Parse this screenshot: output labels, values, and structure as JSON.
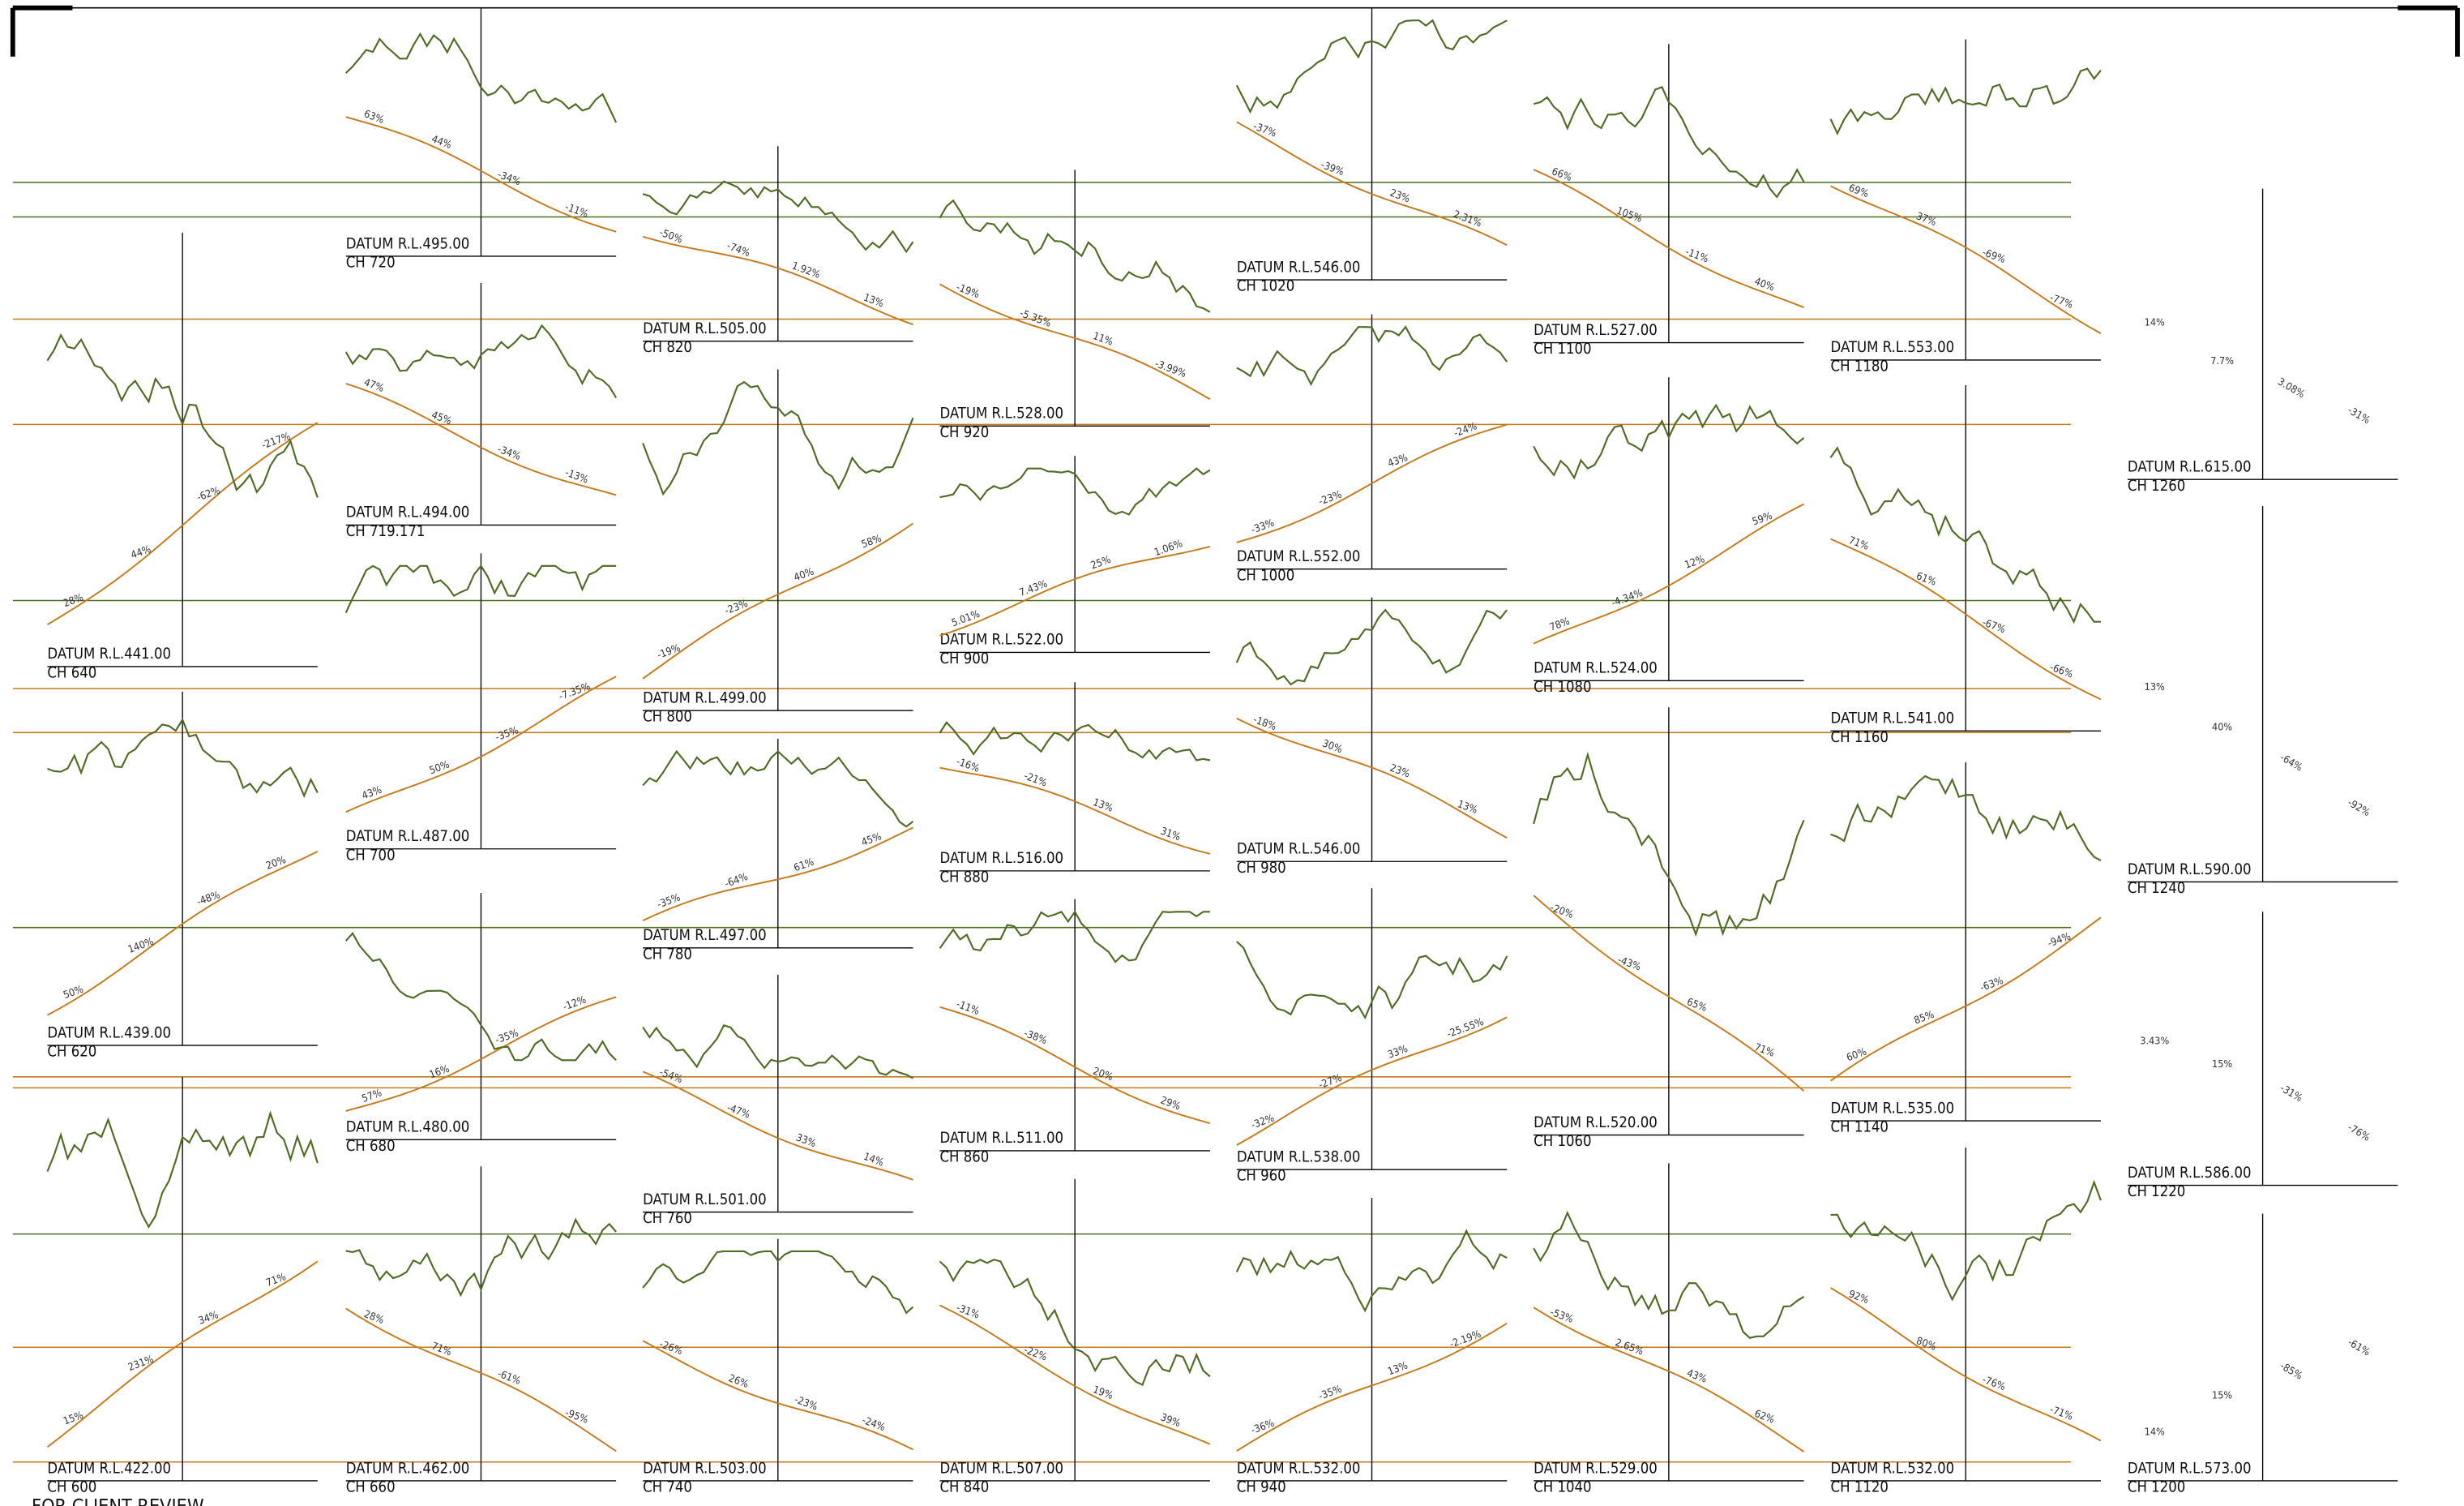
{
  "sections": [
    {
      "datum": "DATUM R.L.441.00",
      "chainage": "CH 640",
      "grades": [
        "28%",
        "44%",
        "-62%",
        "-217%"
      ]
    },
    {
      "datum": "DATUM R.L.439.00",
      "chainage": "CH 620",
      "grades": [
        "50%",
        "140%",
        "-48%",
        "20%"
      ]
    },
    {
      "datum": "DATUM R.L.422.00",
      "chainage": "CH 600",
      "grades": [
        "15%",
        "231%",
        "34%",
        "71%"
      ]
    },
    {
      "datum": "DATUM R.L.495.00",
      "chainage": "CH 720",
      "grades": [
        "63%",
        "44%",
        "-34%",
        "-11%"
      ]
    },
    {
      "datum": "DATUM R.L.494.00",
      "chainage": "CH 719.171",
      "grades": [
        "47%",
        "45%",
        "-34%",
        "-13%"
      ]
    },
    {
      "datum": "DATUM R.L.487.00",
      "chainage": "CH 700",
      "grades": [
        "43%",
        "50%",
        "-35%",
        "-7.35%"
      ]
    },
    {
      "datum": "DATUM R.L.480.00",
      "chainage": "CH 680",
      "grades": [
        "57%",
        "16%",
        "-35%",
        "-12%"
      ]
    },
    {
      "datum": "DATUM R.L.462.00",
      "chainage": "CH 660",
      "grades": [
        "28%",
        "71%",
        "-61%",
        "-95%"
      ]
    },
    {
      "datum": "DATUM R.L.505.00",
      "chainage": "CH 820",
      "grades": [
        "-50%",
        "-74%",
        "1.92%",
        "13%"
      ]
    },
    {
      "datum": "DATUM R.L.499.00",
      "chainage": "CH 800",
      "grades": [
        "-19%",
        "-23%",
        "40%",
        "58%"
      ]
    },
    {
      "datum": "DATUM R.L.497.00",
      "chainage": "CH 780",
      "grades": [
        "-35%",
        "-64%",
        "61%",
        "45%"
      ]
    },
    {
      "datum": "DATUM R.L.501.00",
      "chainage": "CH 760",
      "grades": [
        "-54%",
        "-47%",
        "33%",
        "14%"
      ]
    },
    {
      "datum": "DATUM R.L.503.00",
      "chainage": "CH 740",
      "grades": [
        "-26%",
        "26%",
        "-23%",
        "-24%"
      ]
    },
    {
      "datum": "DATUM R.L.528.00",
      "chainage": "CH 920",
      "grades": [
        "-19%",
        "-5.35%",
        "11%",
        "-3.99%"
      ]
    },
    {
      "datum": "DATUM R.L.522.00",
      "chainage": "CH 900",
      "grades": [
        "5.01%",
        "7.43%",
        "25%",
        "1.06%"
      ]
    },
    {
      "datum": "DATUM R.L.516.00",
      "chainage": "CH 880",
      "grades": [
        "-16%",
        "-21%",
        "13%",
        "31%"
      ]
    },
    {
      "datum": "DATUM R.L.511.00",
      "chainage": "CH 860",
      "grades": [
        "-11%",
        "-38%",
        "20%",
        "29%"
      ]
    },
    {
      "datum": "DATUM R.L.507.00",
      "chainage": "CH 840",
      "grades": [
        "-31%",
        "-22%",
        "19%",
        "39%"
      ]
    },
    {
      "datum": "DATUM R.L.546.00",
      "chainage": "CH 1020",
      "grades": [
        "-37%",
        "-39%",
        "23%",
        "2.31%"
      ]
    },
    {
      "datum": "DATUM R.L.552.00",
      "chainage": "CH 1000",
      "grades": [
        "-33%",
        "-23%",
        "43%",
        "-24%"
      ]
    },
    {
      "datum": "DATUM R.L.546.00",
      "chainage": "CH 980",
      "grades": [
        "-18%",
        "30%",
        "23%",
        "13%"
      ]
    },
    {
      "datum": "DATUM R.L.538.00",
      "chainage": "CH 960",
      "grades": [
        "-32%",
        "-27%",
        "33%",
        "-25.55%"
      ]
    },
    {
      "datum": "DATUM R.L.532.00",
      "chainage": "CH 940",
      "grades": [
        "-36%",
        "-35%",
        "13%",
        "-2.19%"
      ]
    },
    {
      "datum": "DATUM R.L.527.00",
      "chainage": "CH 1100",
      "grades": [
        "66%",
        "105%",
        "-11%",
        "40%"
      ]
    },
    {
      "datum": "DATUM R.L.524.00",
      "chainage": "CH 1080",
      "grades": [
        "78%",
        "-4.34%",
        "12%",
        "59%"
      ]
    },
    {
      "datum": "DATUM R.L.520.00",
      "chainage": "CH 1060",
      "grades": [
        "-20%",
        "-43%",
        "65%",
        "71%"
      ]
    },
    {
      "datum": "DATUM R.L.529.00",
      "chainage": "CH 1040",
      "grades": [
        "-53%",
        "2.65%",
        "43%",
        "62%"
      ]
    },
    {
      "datum": "DATUM R.L.553.00",
      "chainage": "CH 1180",
      "grades": [
        "69%",
        "37%",
        "-69%",
        "-77%"
      ]
    },
    {
      "datum": "DATUM R.L.541.00",
      "chainage": "CH 1160",
      "grades": [
        "71%",
        "61%",
        "-67%",
        "-66%"
      ]
    },
    {
      "datum": "DATUM R.L.535.00",
      "chainage": "CH 1140",
      "grades": [
        "60%",
        "85%",
        "-63%",
        "-94%"
      ]
    },
    {
      "datum": "DATUM R.L.532.00",
      "chainage": "CH 1120",
      "grades": [
        "92%",
        "80%",
        "-76%",
        "-71%"
      ]
    },
    {
      "datum": "DATUM R.L.615.00",
      "chainage": "CH 1260",
      "grades": [
        "14%",
        "7.7%",
        "3.08%",
        "-31%"
      ]
    },
    {
      "datum": "DATUM R.L.590.00",
      "chainage": "CH 1240",
      "grades": [
        "13%",
        "40%",
        "-64%",
        "-92%"
      ]
    },
    {
      "datum": "DATUM R.L.586.00",
      "chainage": "CH 1220",
      "grades": [
        "3.43%",
        "15%",
        "-31%",
        "-76%"
      ]
    },
    {
      "datum": "DATUM R.L.573.00",
      "chainage": "CH 1200",
      "grades": [
        "14%",
        "15%",
        "-85%",
        "-61%"
      ]
    }
  ],
  "footer": "FOR CLIENT REVIEW"
}
